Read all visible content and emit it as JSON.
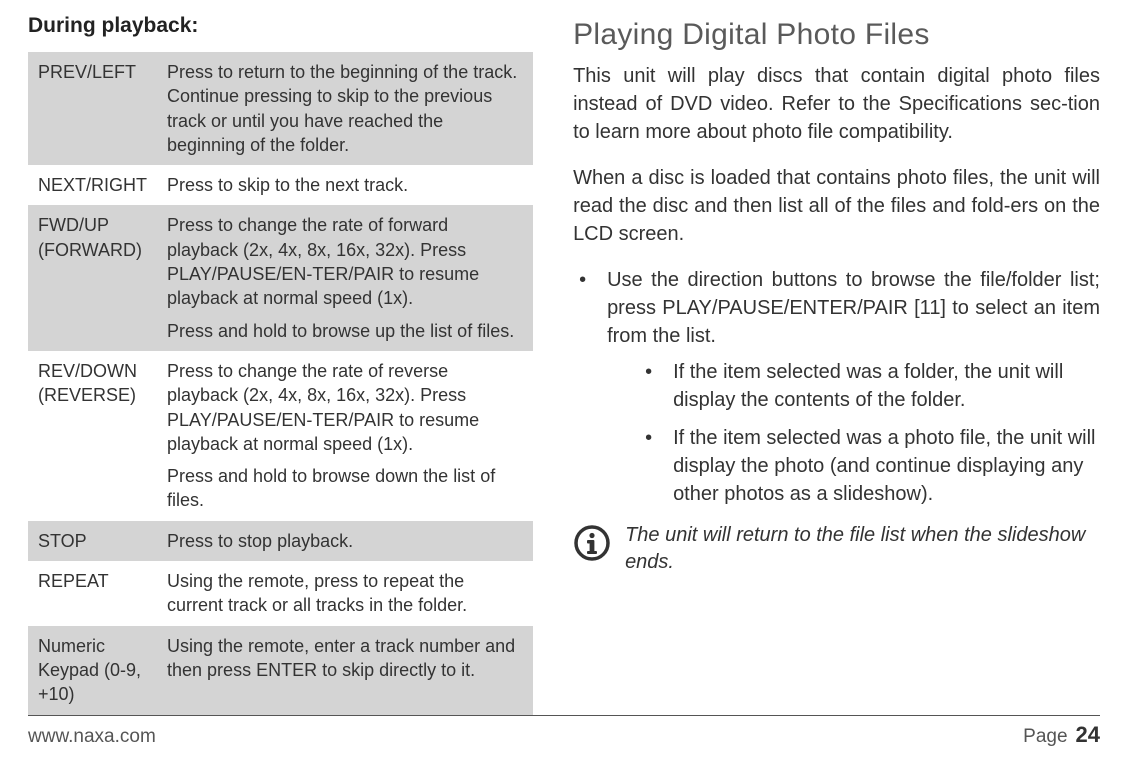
{
  "left": {
    "heading": "During playback:",
    "table": {
      "row_shade_color": "#d4d4d4",
      "rows": [
        {
          "key": "PREV/LEFT",
          "desc": [
            "Press to return to the beginning of the track. Continue pressing to skip to the previous track or until you have reached the beginning of the folder."
          ],
          "shaded": true
        },
        {
          "key": "NEXT/RIGHT",
          "desc": [
            "Press to skip to the next track."
          ],
          "shaded": false
        },
        {
          "key": "FWD/UP (FORWARD)",
          "desc": [
            "Press to change the rate of forward playback (2x, 4x, 8x, 16x, 32x). Press PLAY/PAUSE/EN-TER/PAIR to resume playback at normal speed (1x).",
            "Press and hold to browse up the list of files."
          ],
          "shaded": true
        },
        {
          "key": "REV/DOWN (REVERSE)",
          "desc": [
            "Press to change the rate of reverse playback (2x, 4x, 8x, 16x, 32x). Press PLAY/PAUSE/EN-TER/PAIR to resume playback at normal speed (1x).",
            "Press and hold to browse down the list of files."
          ],
          "shaded": false
        },
        {
          "key": "STOP",
          "desc": [
            "Press to stop playback."
          ],
          "shaded": true
        },
        {
          "key": "REPEAT",
          "desc": [
            "Using the remote, press to repeat the current track or all tracks in the folder."
          ],
          "shaded": false
        },
        {
          "key": "Numeric Keypad (0-9, +10)",
          "desc": [
            "Using the remote, enter a track number and then press ENTER to skip directly to it."
          ],
          "shaded": true
        }
      ]
    }
  },
  "right": {
    "heading": "Playing Digital Photo Files",
    "para1": "This unit will play discs that contain digital photo files instead of DVD video. Refer to the Specifications sec-tion to learn more about photo file compatibility.",
    "para2": "When a disc is loaded that contains photo files, the unit will read the disc and then list all of the files and fold-ers on the LCD screen.",
    "bullet_main": "Use the direction buttons to browse the file/folder list; press PLAY/PAUSE/ENTER/PAIR [11] to select an item from the list.",
    "bullet_sub1": "If the item selected was a folder, the unit will display the contents of the folder.",
    "bullet_sub2": "If the item selected was a photo file, the unit will display the photo (and continue displaying any other photos as a slideshow).",
    "note": "The unit will return to the file list when the slideshow ends."
  },
  "footer": {
    "url": "www.naxa.com",
    "page_label": "Page",
    "page_num": "24"
  },
  "colors": {
    "text": "#333333",
    "heading_gray": "#5a5a5a",
    "rule": "#555555",
    "icon_stroke": "#333333"
  }
}
